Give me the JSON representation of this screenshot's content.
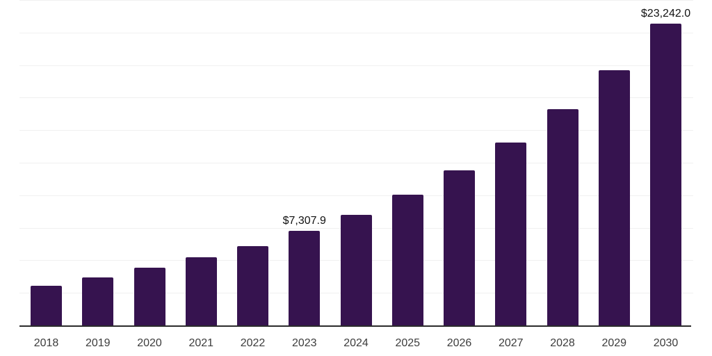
{
  "chart_data": {
    "type": "bar",
    "title": "",
    "xlabel": "",
    "ylabel": "",
    "categories": [
      "2018",
      "2019",
      "2020",
      "2021",
      "2022",
      "2023",
      "2024",
      "2025",
      "2026",
      "2027",
      "2028",
      "2029",
      "2030"
    ],
    "values": [
      3100,
      3760,
      4480,
      5270,
      6150,
      7307.9,
      8570,
      10120,
      11940,
      14090,
      16650,
      19680,
      23242.0
    ],
    "data_labels": [
      {
        "category": "2023",
        "text": "$7,307.9"
      },
      {
        "category": "2030",
        "text": "$23,242.0"
      }
    ],
    "ylim": [
      0,
      25000
    ],
    "gridline_step": 2500,
    "grid": "horizontal",
    "legend_position": "none",
    "y_axis_labels_visible": false,
    "bar_color": "#36134F"
  },
  "colors": {
    "background": "#ffffff",
    "bar": "#36134F",
    "gridline": "#f0f0f0",
    "axis_line": "#2b2b2b",
    "tick_label": "#3c3c3c",
    "data_label": "#111111"
  }
}
